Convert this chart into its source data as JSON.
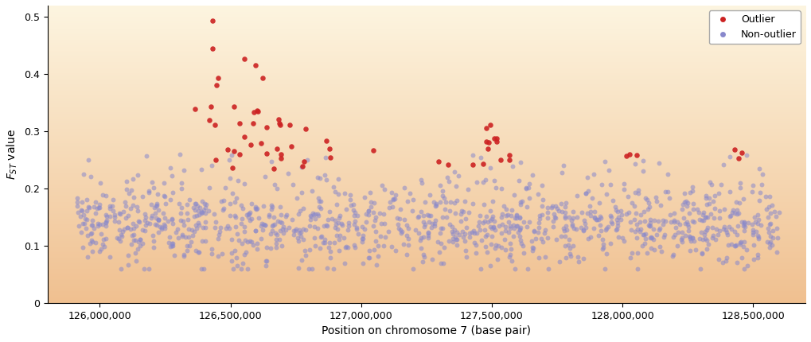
{
  "title": "",
  "xlabel": "Position on chromosome 7 (base pair)",
  "ylabel": "$F_{ST}$ value",
  "xlim": [
    125800000,
    128700000
  ],
  "ylim": [
    0,
    0.52
  ],
  "yticks": [
    0,
    0.1,
    0.2,
    0.3,
    0.4,
    0.5
  ],
  "xticks": [
    126000000,
    126500000,
    127000000,
    127500000,
    128000000,
    128500000
  ],
  "xtick_labels": [
    "126,000,000",
    "126,500,000",
    "127,000,000",
    "127,500,000",
    "128,000,000",
    "128,500,000"
  ],
  "outlier_color": "#cc2222",
  "non_outlier_color": "#8888cc",
  "outlier_alpha": 0.9,
  "non_outlier_alpha": 0.55,
  "marker_size_outlier": 22,
  "marker_size_non_outlier": 18,
  "bg_color_top": "#fdf5e6",
  "bg_color_bottom": "#f5deb3",
  "legend_outlier": "Outlier",
  "legend_non_outlier": "Non-outlier",
  "seed": 42
}
